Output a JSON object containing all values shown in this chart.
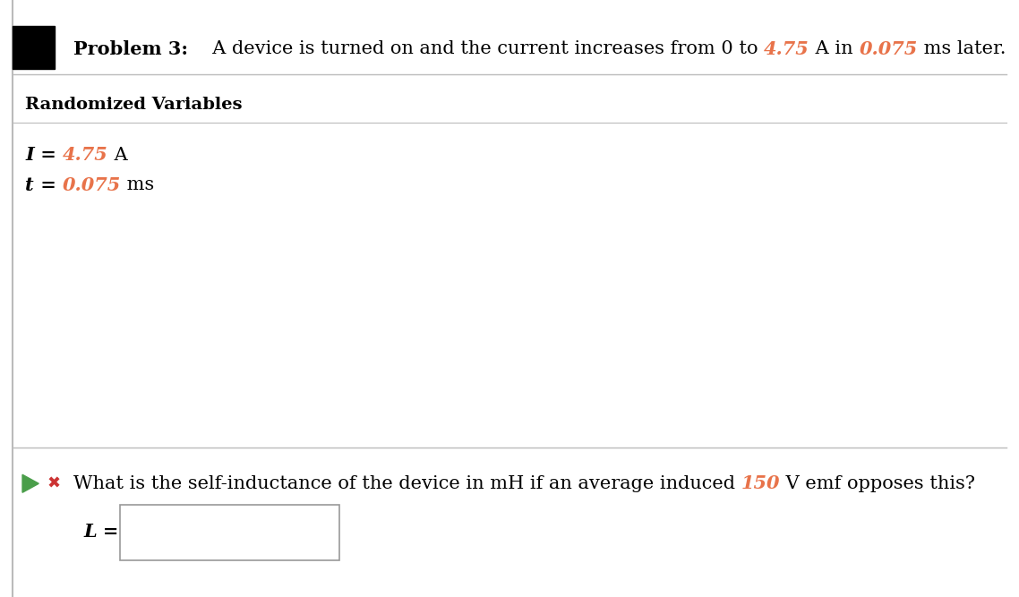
{
  "bg_color": "#ffffff",
  "black_square_color": "#000000",
  "problem_label": "Problem 3:",
  "problem_value1": "4.75",
  "problem_value2": "0.075",
  "section_title": "Randomized Variables",
  "var1_label": "I",
  "var1_value": "4.75",
  "var1_unit": " A",
  "var2_label": "t",
  "var2_value": "0.075",
  "var2_unit": " ms",
  "question_value": "150",
  "question_text_after": " V emf opposes this?",
  "highlight_color": "#e8734a",
  "text_color": "#000000",
  "divider_color": "#bbbbbb",
  "input_box_color": "#ffffff",
  "input_box_border": "#999999",
  "play_arrow_color": "#4a9e4a",
  "x_icon_color": "#cc3333",
  "figwidth": 11.38,
  "figheight": 6.67,
  "dpi": 100
}
